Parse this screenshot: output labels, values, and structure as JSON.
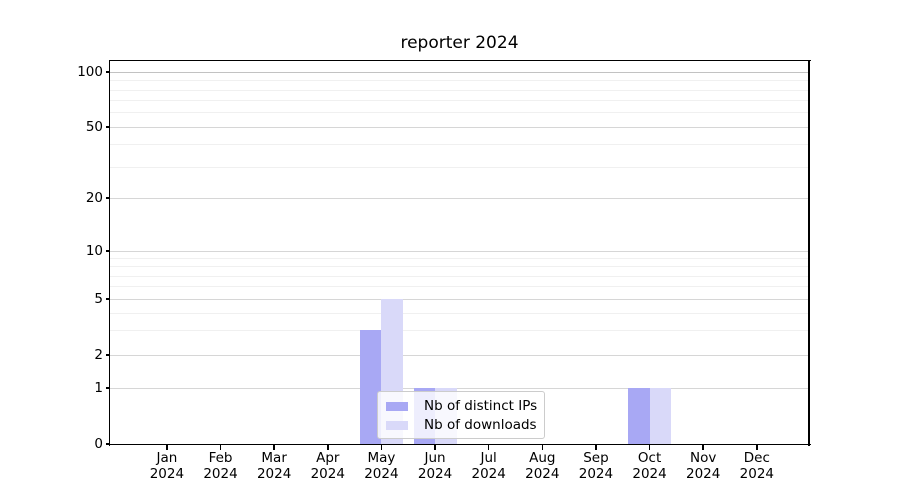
{
  "title": "reporter 2024",
  "chart_data": {
    "type": "bar",
    "title": "reporter 2024",
    "xlabel": "",
    "ylabel": "",
    "categories": [
      "Jan",
      "Feb",
      "Mar",
      "Apr",
      "May",
      "Jun",
      "Jul",
      "Aug",
      "Sep",
      "Oct",
      "Nov",
      "Dec"
    ],
    "year_label": "2024",
    "series": [
      {
        "name": "Nb of distinct IPs",
        "color": "#a8a8f4",
        "values": [
          0,
          0,
          0,
          0,
          3,
          1,
          0,
          0,
          0,
          1,
          0,
          0
        ]
      },
      {
        "name": "Nb of downloads",
        "color": "#d9d9f9",
        "values": [
          0,
          0,
          0,
          0,
          5,
          1,
          0,
          0,
          0,
          1,
          0,
          0
        ]
      }
    ],
    "yscale": "symlog",
    "ylim": [
      0,
      115
    ],
    "yticks_major": [
      0,
      1,
      2,
      5,
      10,
      20,
      50,
      100
    ],
    "yticks_minor": [
      3,
      4,
      6,
      7,
      8,
      9,
      30,
      40,
      60,
      70,
      80,
      90
    ],
    "grid": "horizontal major and minor gridlines",
    "legend_position": "lower center inside plot"
  },
  "colors": {
    "series_dark": "#a8a8f4",
    "series_light": "#d9d9f9",
    "grid_major": "#d6d6d6",
    "grid_minor": "#f0f0f0",
    "spine": "#000000",
    "background": "#ffffff"
  }
}
